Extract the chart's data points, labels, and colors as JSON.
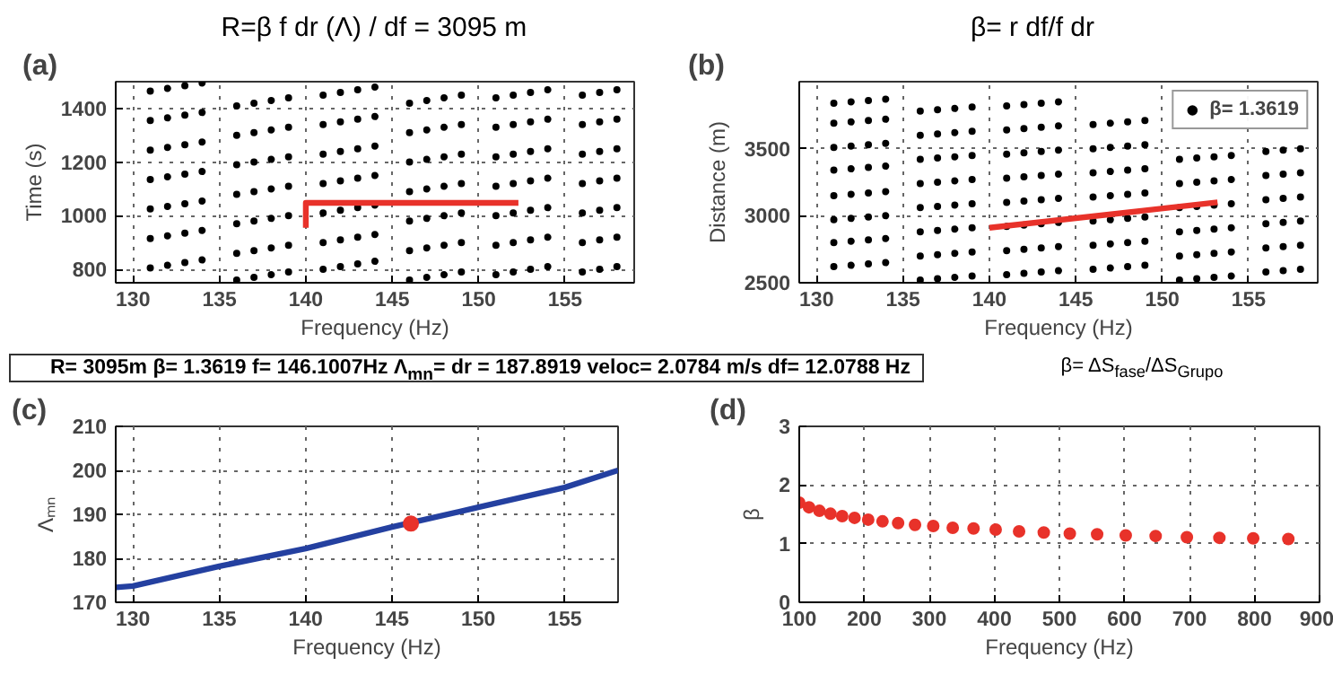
{
  "chart_data": [
    {
      "type": "scatter",
      "title": "R=β f dr (Λ) / df = 3095 m",
      "xlabel": "Frequency (Hz)",
      "ylabel": "Time (s)",
      "annotations": [
        "(a)"
      ],
      "xlim": [
        129,
        159
      ],
      "ylim": [
        750,
        1500
      ],
      "xticks": [
        130,
        135,
        140,
        145,
        150,
        155
      ],
      "yticks": [
        800,
        1000,
        1200,
        1400
      ],
      "grid": true,
      "series": [
        {
          "type": "scatter",
          "marker": "circle",
          "color": "#000000",
          "x": [
            131,
            132,
            133,
            134,
            131,
            132,
            133,
            134,
            131,
            132,
            133,
            134,
            131,
            132,
            133,
            134,
            131,
            132,
            133,
            134,
            131,
            132,
            133,
            134,
            131,
            132,
            133,
            134,
            136,
            137,
            138,
            139,
            136,
            137,
            138,
            139,
            136,
            137,
            138,
            139,
            136,
            137,
            138,
            139,
            136,
            137,
            138,
            139,
            136,
            137,
            138,
            139,
            136,
            137,
            138,
            139,
            141,
            142,
            143,
            144,
            141,
            142,
            143,
            144,
            141,
            142,
            143,
            144,
            141,
            142,
            143,
            144,
            141,
            142,
            143,
            144,
            141,
            142,
            143,
            144,
            141,
            142,
            143,
            144,
            146,
            147,
            148,
            149,
            146,
            147,
            148,
            149,
            146,
            147,
            148,
            149,
            146,
            147,
            148,
            149,
            146,
            147,
            148,
            149,
            146,
            147,
            148,
            149,
            146,
            147,
            148,
            149,
            151,
            152,
            153,
            154,
            151,
            152,
            153,
            154,
            151,
            152,
            153,
            154,
            151,
            152,
            153,
            154,
            151,
            152,
            153,
            154,
            151,
            152,
            153,
            154,
            151,
            152,
            153,
            154,
            156,
            157,
            158,
            156,
            157,
            158,
            156,
            157,
            158,
            156,
            157,
            158,
            156,
            157,
            158,
            156,
            157,
            158,
            156,
            157,
            158
          ],
          "values": [
            805,
            815,
            825,
            835,
            915,
            925,
            935,
            945,
            1025,
            1035,
            1045,
            1055,
            1135,
            1145,
            1155,
            1165,
            1245,
            1255,
            1265,
            1275,
            1355,
            1365,
            1375,
            1385,
            1465,
            1475,
            1485,
            1495,
            760,
            770,
            780,
            790,
            860,
            870,
            880,
            890,
            970,
            980,
            990,
            1000,
            1080,
            1090,
            1100,
            1110,
            1190,
            1200,
            1210,
            1220,
            1300,
            1310,
            1320,
            1330,
            1410,
            1420,
            1430,
            1440,
            800,
            810,
            820,
            830,
            900,
            910,
            920,
            930,
            1010,
            1020,
            1030,
            1040,
            1120,
            1130,
            1140,
            1150,
            1230,
            1240,
            1250,
            1260,
            1340,
            1350,
            1360,
            1370,
            1450,
            1460,
            1470,
            1480,
            760,
            770,
            780,
            790,
            870,
            880,
            890,
            900,
            980,
            990,
            1000,
            1010,
            1090,
            1100,
            1110,
            1120,
            1200,
            1210,
            1220,
            1230,
            1310,
            1320,
            1330,
            1340,
            1420,
            1430,
            1440,
            1450,
            780,
            790,
            800,
            810,
            890,
            900,
            910,
            920,
            1000,
            1010,
            1020,
            1030,
            1110,
            1120,
            1130,
            1140,
            1220,
            1230,
            1240,
            1250,
            1330,
            1340,
            1350,
            1360,
            1440,
            1450,
            1460,
            1470,
            790,
            800,
            810,
            900,
            910,
            920,
            1010,
            1020,
            1030,
            1120,
            1130,
            1140,
            1230,
            1240,
            1250,
            1340,
            1350,
            1360,
            1450,
            1460,
            1470
          ]
        },
        {
          "type": "line",
          "color": "#e8322a",
          "line_style": "solid",
          "x": [
            140,
            140,
            152.3
          ],
          "values": [
            955,
            1048,
            1048
          ]
        }
      ]
    },
    {
      "type": "scatter",
      "title": "β= r df/f dr",
      "xlabel": "Frequency (Hz)",
      "ylabel": "Distance (m)",
      "annotations": [
        "(b)"
      ],
      "xlim": [
        129,
        159
      ],
      "ylim": [
        2500,
        4000
      ],
      "xticks": [
        130,
        135,
        140,
        145,
        150,
        155
      ],
      "yticks": [
        2500,
        3000,
        3500
      ],
      "grid": true,
      "legend": "top right",
      "series": [
        {
          "type": "scatter",
          "marker": "circle",
          "name": "β= 1.3619",
          "color": "#000000",
          "x": [
            131,
            132,
            133,
            134,
            131,
            132,
            133,
            134,
            131,
            132,
            133,
            134,
            131,
            132,
            133,
            134,
            131,
            132,
            133,
            134,
            131,
            132,
            133,
            134,
            131,
            132,
            133,
            134,
            131,
            132,
            133,
            134,
            136,
            137,
            138,
            139,
            136,
            137,
            138,
            139,
            136,
            137,
            138,
            139,
            136,
            137,
            138,
            139,
            136,
            137,
            138,
            139,
            136,
            137,
            138,
            139,
            136,
            137,
            138,
            139,
            136,
            137,
            138,
            139,
            141,
            142,
            143,
            144,
            141,
            142,
            143,
            144,
            141,
            142,
            143,
            144,
            141,
            142,
            143,
            144,
            141,
            142,
            143,
            144,
            141,
            142,
            143,
            144,
            141,
            142,
            143,
            144,
            141,
            142,
            143,
            144,
            146,
            147,
            148,
            149,
            146,
            147,
            148,
            149,
            146,
            147,
            148,
            149,
            146,
            147,
            148,
            149,
            146,
            147,
            148,
            149,
            146,
            147,
            148,
            149,
            146,
            147,
            148,
            149,
            151,
            152,
            153,
            154,
            151,
            152,
            153,
            154,
            151,
            152,
            153,
            154,
            151,
            152,
            153,
            154,
            151,
            152,
            153,
            154,
            151,
            152,
            153,
            154,
            156,
            157,
            158,
            156,
            157,
            158,
            156,
            157,
            158,
            156,
            157,
            158,
            156,
            157,
            158,
            156,
            157,
            158
          ],
          "values": [
            2620,
            2630,
            2640,
            2650,
            2800,
            2810,
            2820,
            2830,
            2970,
            2980,
            2990,
            3000,
            3150,
            3160,
            3170,
            3180,
            3340,
            3350,
            3360,
            3370,
            3510,
            3520,
            3530,
            3540,
            3690,
            3700,
            3710,
            3720,
            3840,
            3850,
            3860,
            3870,
            2520,
            2530,
            2540,
            2550,
            2700,
            2710,
            2720,
            2730,
            2880,
            2890,
            2900,
            2910,
            3060,
            3070,
            3080,
            3090,
            3240,
            3250,
            3260,
            3270,
            3420,
            3430,
            3440,
            3450,
            3600,
            3610,
            3620,
            3630,
            3780,
            3790,
            3800,
            3810,
            2560,
            2570,
            2580,
            2590,
            2740,
            2750,
            2760,
            2770,
            2920,
            2930,
            2940,
            2950,
            3100,
            3110,
            3120,
            3130,
            3280,
            3290,
            3300,
            3310,
            3460,
            3470,
            3480,
            3490,
            3640,
            3650,
            3660,
            3670,
            3820,
            3830,
            3840,
            3850,
            2600,
            2610,
            2620,
            2630,
            2780,
            2790,
            2800,
            2810,
            2960,
            2970,
            2980,
            2990,
            3140,
            3150,
            3160,
            3170,
            3320,
            3330,
            3340,
            3350,
            3500,
            3510,
            3520,
            3530,
            3680,
            3690,
            3700,
            3710,
            2520,
            2530,
            2540,
            2550,
            2700,
            2710,
            2720,
            2730,
            2880,
            2890,
            2900,
            2910,
            3060,
            3070,
            3080,
            3090,
            3240,
            3250,
            3260,
            3270,
            3420,
            3430,
            3440,
            3450,
            2580,
            2590,
            2600,
            2760,
            2770,
            2780,
            2940,
            2950,
            2960,
            3120,
            3130,
            3140,
            3300,
            3310,
            3320,
            3480,
            3490,
            3500
          ]
        },
        {
          "type": "line",
          "color": "#e8322a",
          "line_style": "solid",
          "x": [
            140,
            153.2
          ],
          "values": [
            2910,
            3100
          ]
        }
      ]
    },
    {
      "type": "line",
      "xlabel": "Frequency (Hz)",
      "ylabel": "Λₘₙ",
      "annotations": [
        "(c)",
        "R= 3095m  β= 1.3619  f= 146.1007Hz Λ$_{mn}$= dr = 187.8919 veloc= 2.0784 m/s df= 12.0788 Hz"
      ],
      "xlim": [
        129,
        158.1
      ],
      "ylim": [
        170,
        210
      ],
      "xticks": [
        130,
        135,
        140,
        145,
        150,
        155
      ],
      "yticks": [
        170,
        180,
        190,
        200,
        210
      ],
      "grid": true,
      "series": [
        {
          "type": "line",
          "color": "#2440a0",
          "line_style": "solid",
          "x": [
            129,
            130,
            135,
            140,
            145,
            150,
            155,
            158.1
          ],
          "values": [
            173.4,
            173.7,
            178.2,
            182.2,
            187.1,
            191.6,
            196.1,
            200
          ]
        },
        {
          "type": "scatter",
          "marker": "circle",
          "color": "#e8322a",
          "x": [
            146.1
          ],
          "values": [
            187.9
          ]
        }
      ]
    },
    {
      "type": "scatter",
      "title": "β= ΔS$_{fase}$/ΔS$_{Grupo}$",
      "xlabel": "Frequency (Hz)",
      "ylabel": "β",
      "annotations": [
        "(d)"
      ],
      "xlim": [
        100,
        900
      ],
      "ylim": [
        0,
        3
      ],
      "xticks": [
        100,
        200,
        300,
        400,
        500,
        600,
        700,
        800,
        900
      ],
      "yticks": [
        0,
        1,
        2,
        3
      ],
      "grid": true,
      "series": [
        {
          "marker": "circle",
          "color": "#e8322a",
          "x": [
            100,
            115,
            131,
            148,
            166,
            185,
            206,
            228,
            252,
            278,
            306,
            336,
            368,
            402,
            438,
            476,
            516,
            558,
            602,
            648,
            696,
            746,
            798,
            852
          ],
          "values": [
            1.7,
            1.62,
            1.56,
            1.51,
            1.47,
            1.44,
            1.41,
            1.38,
            1.35,
            1.32,
            1.3,
            1.27,
            1.26,
            1.24,
            1.21,
            1.19,
            1.17,
            1.16,
            1.14,
            1.13,
            1.11,
            1.1,
            1.09,
            1.08
          ]
        }
      ]
    }
  ]
}
